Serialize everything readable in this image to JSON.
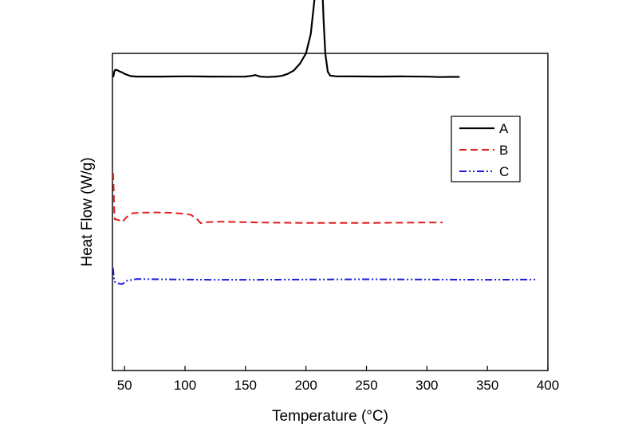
{
  "chart_data": {
    "type": "line",
    "xlabel": "Temperature (°C)",
    "ylabel": "Heat Flow (W/g)",
    "xlim": [
      40,
      400
    ],
    "xticks": [
      50,
      100,
      150,
      200,
      250,
      300,
      350,
      400
    ],
    "xtick_labels": [
      "50",
      "100",
      "150",
      "200",
      "250",
      "300",
      "350",
      "400"
    ],
    "grid": false,
    "legend_position": "right",
    "y_tick_labels_shown": false,
    "series": [
      {
        "name": "A",
        "color": "#000000",
        "style": "solid",
        "points": [
          [
            40.5,
            0.25
          ],
          [
            41,
            1.0
          ],
          [
            41.5,
            2.6
          ],
          [
            42.5,
            3.3
          ],
          [
            44,
            3.1
          ],
          [
            46,
            2.6
          ],
          [
            48,
            2.2
          ],
          [
            50,
            1.6
          ],
          [
            55,
            0.7
          ],
          [
            60,
            0.5
          ],
          [
            80,
            0.5
          ],
          [
            100,
            0.6
          ],
          [
            120,
            0.5
          ],
          [
            140,
            0.45
          ],
          [
            150,
            0.5
          ],
          [
            155,
            0.8
          ],
          [
            158,
            1.1
          ],
          [
            162,
            0.5
          ],
          [
            168,
            0.3
          ],
          [
            175,
            0.5
          ],
          [
            180,
            0.8
          ],
          [
            185,
            1.6
          ],
          [
            190,
            3.0
          ],
          [
            195,
            5.8
          ],
          [
            200,
            10.0
          ],
          [
            204,
            18.0
          ],
          [
            207,
            32.0
          ],
          [
            209,
            48.0
          ],
          [
            210.5,
            60.0
          ],
          [
            211.5,
            61.0
          ],
          [
            212.5,
            52.0
          ],
          [
            213.5,
            38.0
          ],
          [
            214.5,
            24.0
          ],
          [
            216,
            10.0
          ],
          [
            218,
            2.5
          ],
          [
            220,
            0.9
          ],
          [
            225,
            0.6
          ],
          [
            240,
            0.55
          ],
          [
            260,
            0.5
          ],
          [
            280,
            0.55
          ],
          [
            300,
            0.45
          ],
          [
            310,
            0.3
          ],
          [
            320,
            0.35
          ],
          [
            327,
            0.35
          ]
        ]
      },
      {
        "name": "B",
        "color": "#e02020",
        "style": "dashed",
        "points": [
          [
            40.5,
            -39.0
          ],
          [
            41,
            -45.0
          ],
          [
            41.5,
            -55.0
          ],
          [
            42,
            -58.0
          ],
          [
            45,
            -58.3
          ],
          [
            48,
            -59.2
          ],
          [
            52,
            -57.0
          ],
          [
            57,
            -55.5
          ],
          [
            65,
            -55.3
          ],
          [
            75,
            -55.2
          ],
          [
            90,
            -55.4
          ],
          [
            100,
            -55.8
          ],
          [
            105,
            -56.2
          ],
          [
            110,
            -58.0
          ],
          [
            113,
            -59.6
          ],
          [
            117,
            -59.2
          ],
          [
            130,
            -59.0
          ],
          [
            160,
            -59.3
          ],
          [
            200,
            -59.5
          ],
          [
            250,
            -59.5
          ],
          [
            300,
            -59.3
          ],
          [
            313,
            -59.3
          ]
        ]
      },
      {
        "name": "C",
        "color": "#1a1ad8",
        "style": "dash-dot-dot",
        "points": [
          [
            40.5,
            -78.0
          ],
          [
            41,
            -81.0
          ],
          [
            41.5,
            -83.5
          ],
          [
            44,
            -84.2
          ],
          [
            48,
            -84.6
          ],
          [
            52,
            -83.2
          ],
          [
            60,
            -82.5
          ],
          [
            80,
            -82.6
          ],
          [
            120,
            -82.8
          ],
          [
            160,
            -82.8
          ],
          [
            200,
            -82.7
          ],
          [
            250,
            -82.6
          ],
          [
            300,
            -82.7
          ],
          [
            350,
            -82.8
          ],
          [
            391,
            -82.7
          ]
        ]
      }
    ]
  }
}
